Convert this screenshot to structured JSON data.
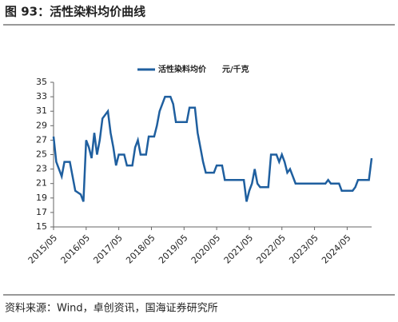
{
  "chart_data": {
    "type": "line",
    "title": "图 93：活性染料均价曲线",
    "unit": "元/千克",
    "source": "资料来源：Wind，卓创资讯，国海证券研究所",
    "x": [
      "2015/05",
      "2015/06",
      "2015/08",
      "2015/09",
      "2015/11",
      "2015/12",
      "2016/01",
      "2016/03",
      "2016/04",
      "2016/05",
      "2016/06",
      "2016/07",
      "2016/08",
      "2016/09",
      "2016/10",
      "2016/11",
      "2017/01",
      "2017/02",
      "2017/03",
      "2017/04",
      "2017/05",
      "2017/07",
      "2017/08",
      "2017/10",
      "2017/11",
      "2017/12",
      "2018/01",
      "2018/03",
      "2018/04",
      "2018/06",
      "2018/07",
      "2018/08",
      "2018/09",
      "2018/10",
      "2018/12",
      "2019/01",
      "2019/02",
      "2019/06",
      "2019/07",
      "2019/09",
      "2019/10",
      "2019/11",
      "2019/12",
      "2020/01",
      "2020/04",
      "2020/05",
      "2020/07",
      "2020/08",
      "2021/03",
      "2021/04",
      "2021/05",
      "2021/06",
      "2021/07",
      "2021/08",
      "2021/09",
      "2021/12",
      "2022/01",
      "2022/03",
      "2022/04",
      "2022/05",
      "2022/06",
      "2022/07",
      "2022/08",
      "2022/09",
      "2022/10",
      "2023/09",
      "2023/10",
      "2023/11",
      "2024/02",
      "2024/03",
      "2024/07",
      "2024/08",
      "2024/09",
      "2025/01",
      "2025/02"
    ],
    "series": [
      {
        "name": "活性染料均价",
        "color": "#1f5f9f",
        "values": [
          27.5,
          24,
          22,
          24,
          24,
          22,
          20,
          19.5,
          18.5,
          27,
          26,
          24.5,
          28,
          25,
          27,
          30,
          31,
          28,
          26,
          23.5,
          25,
          25,
          23.5,
          23.5,
          26,
          27,
          25,
          25,
          27.5,
          27.5,
          29,
          31,
          32,
          33,
          33,
          32,
          29.5,
          29.5,
          31.5,
          31.5,
          28,
          26,
          24,
          22.5,
          22.5,
          23.5,
          23.5,
          21.5,
          21.5,
          18.5,
          20,
          21,
          23,
          21,
          20.5,
          20.5,
          25,
          25,
          24,
          25,
          24,
          22.5,
          23,
          22,
          21,
          21,
          21.5,
          21,
          21,
          20,
          20,
          20.5,
          21.5,
          21.5,
          24.5
        ]
      }
    ],
    "xlim": [
      "2015/05",
      "2025/02"
    ],
    "xticks": [
      "2015/05",
      "2016/05",
      "2017/05",
      "2018/05",
      "2019/05",
      "2020/05",
      "2021/05",
      "2022/05",
      "2023/05",
      "2024/05"
    ],
    "ylim": [
      15,
      35
    ],
    "yticks": [
      15,
      17,
      19,
      21,
      23,
      25,
      27,
      29,
      31,
      33,
      35
    ]
  }
}
